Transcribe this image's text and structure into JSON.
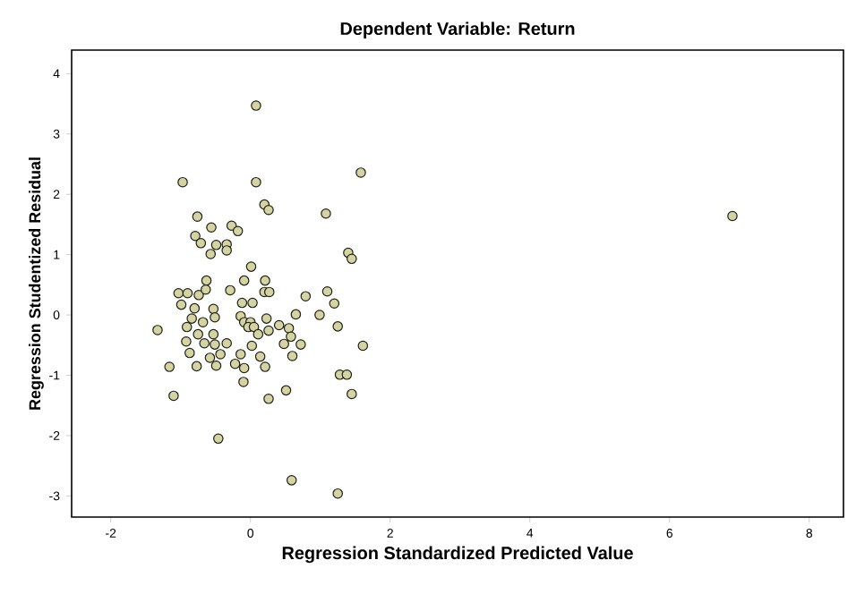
{
  "chart_data": {
    "type": "scatter",
    "title": "Dependent Variable: Return",
    "xlabel": "Regression Standardized Predicted Value",
    "ylabel": "Regression Studentized Residual",
    "xlim": [
      -2.56,
      8.49
    ],
    "ylim": [
      -3.35,
      4.39
    ],
    "xticks": [
      -2,
      0,
      2,
      4,
      6,
      8
    ],
    "yticks": [
      -3,
      -2,
      -1,
      0,
      1,
      2,
      3,
      4
    ],
    "grid": false,
    "marker": "circle",
    "series": [
      {
        "color": "#d4d4a2",
        "x": [
          6.9,
          0.08,
          -0.97,
          0.08,
          1.58,
          0.2,
          0.26,
          1.08,
          -0.76,
          -0.56,
          -0.27,
          -0.18,
          -0.79,
          -0.71,
          -0.49,
          -0.34,
          -0.57,
          -0.34,
          1.4,
          1.45,
          0.01,
          -0.09,
          0.21,
          -0.63,
          -1.03,
          -0.9,
          -0.74,
          -0.64,
          -0.29,
          0.2,
          0.27,
          0.79,
          1.1,
          1.2,
          -0.99,
          -0.12,
          0.03,
          -0.8,
          -0.53,
          0.65,
          0.99,
          -1.33,
          -0.84,
          -0.68,
          -0.51,
          -0.14,
          -0.09,
          0,
          0.23,
          -0.91,
          -0.75,
          -0.53,
          -0.03,
          0.05,
          0.11,
          0.26,
          0.41,
          0.55,
          1.25,
          -0.92,
          -0.66,
          -0.51,
          -0.34,
          0.02,
          0.48,
          0.58,
          0.72,
          1.61,
          -0.87,
          -0.43,
          -0.14,
          0.14,
          -0.58,
          0.6,
          -1.16,
          -0.77,
          -0.49,
          -0.22,
          -0.09,
          0.21,
          1.28,
          1.38,
          -0.1,
          -1.1,
          0.51,
          0.26,
          1.45,
          -0.46,
          0.59,
          1.25
        ],
        "values": [
          1.64,
          3.47,
          2.2,
          2.2,
          2.36,
          1.83,
          1.74,
          1.68,
          1.63,
          1.45,
          1.48,
          1.39,
          1.31,
          1.19,
          1.16,
          1.17,
          1.01,
          1.07,
          1.03,
          0.93,
          0.8,
          0.57,
          0.57,
          0.57,
          0.36,
          0.36,
          0.33,
          0.42,
          0.41,
          0.38,
          0.38,
          0.31,
          0.39,
          0.19,
          0.17,
          0.2,
          0.2,
          0.11,
          0.1,
          0.01,
          0.0,
          -0.25,
          -0.06,
          -0.12,
          -0.04,
          -0.02,
          -0.12,
          -0.12,
          -0.06,
          -0.2,
          -0.32,
          -0.32,
          -0.2,
          -0.2,
          -0.32,
          -0.26,
          -0.17,
          -0.22,
          -0.19,
          -0.44,
          -0.47,
          -0.49,
          -0.47,
          -0.51,
          -0.48,
          -0.36,
          -0.49,
          -0.51,
          -0.63,
          -0.65,
          -0.65,
          -0.69,
          -0.71,
          -0.68,
          -0.86,
          -0.85,
          -0.84,
          -0.81,
          -0.88,
          -0.86,
          -0.99,
          -0.99,
          -1.11,
          -1.34,
          -1.25,
          -1.39,
          -1.31,
          -2.05,
          -2.74,
          -2.96
        ]
      }
    ]
  }
}
